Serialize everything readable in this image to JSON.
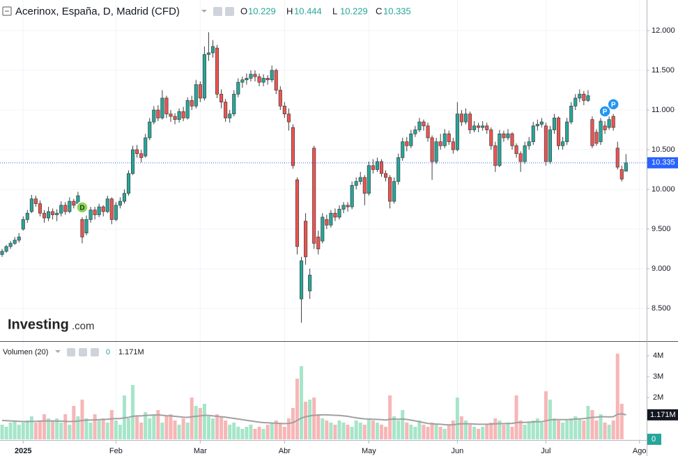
{
  "header": {
    "title": "Acerinox, España, D, Madrid (CFD)",
    "ohlc": [
      {
        "label": "O",
        "value": 10.229
      },
      {
        "label": "H",
        "value": 10.444
      },
      {
        "label": "L",
        "value": 10.229
      },
      {
        "label": "C",
        "value": 10.335
      }
    ]
  },
  "watermark": {
    "brand": "Investing",
    "suffix": ".com"
  },
  "chart_data": [
    {
      "type": "candlestick",
      "up_color": "#26a69a",
      "down_color": "#ef5350",
      "border_color": "#3d3d3d",
      "grid": true,
      "xlim": [
        -0.5,
        152.9
      ],
      "xticks": [
        {
          "value": 5,
          "label": "2025"
        },
        {
          "value": 27,
          "label": "Feb"
        },
        {
          "value": 47,
          "label": "Mar"
        },
        {
          "value": 67,
          "label": "Abr"
        },
        {
          "value": 87,
          "label": "May"
        },
        {
          "value": 108,
          "label": "Jun"
        },
        {
          "value": 129,
          "label": "Jul"
        },
        {
          "value": 151.2,
          "label": "Ago"
        }
      ],
      "ylim": [
        8.088,
        12.386
      ],
      "yticks": [
        {
          "value": 8.5,
          "label": "8.500"
        },
        {
          "value": 9,
          "label": "9.000"
        },
        {
          "value": 9.5,
          "label": "9.500"
        },
        {
          "value": 10,
          "label": "10.000"
        },
        {
          "value": 10.5,
          "label": "10.500"
        },
        {
          "value": 11,
          "label": "11.000"
        },
        {
          "value": 11.5,
          "label": "11.500"
        },
        {
          "value": 12,
          "label": "12.000"
        }
      ],
      "last_price": 10.335,
      "last_price_color": "#2962ff",
      "events": [
        {
          "label": "D",
          "x": 19,
          "color": "#8fd45f"
        },
        {
          "label": "P",
          "x": 143,
          "color": "#2196f3"
        },
        {
          "label": "P",
          "x": 145,
          "color": "#2196f3"
        }
      ],
      "candles": [
        [
          9.18,
          9.25,
          9.15,
          9.22
        ],
        [
          9.22,
          9.3,
          9.2,
          9.28
        ],
        [
          9.28,
          9.35,
          9.25,
          9.32
        ],
        [
          9.32,
          9.4,
          9.3,
          9.36
        ],
        [
          9.36,
          9.45,
          9.33,
          9.4
        ],
        [
          9.5,
          9.66,
          9.48,
          9.62
        ],
        [
          9.62,
          9.74,
          9.58,
          9.7
        ],
        [
          9.72,
          9.93,
          9.7,
          9.88
        ],
        [
          9.88,
          9.92,
          9.78,
          9.82
        ],
        [
          9.82,
          9.86,
          9.66,
          9.7
        ],
        [
          9.7,
          9.74,
          9.58,
          9.64
        ],
        [
          9.64,
          9.78,
          9.6,
          9.72
        ],
        [
          9.72,
          9.76,
          9.62,
          9.68
        ],
        [
          9.68,
          9.75,
          9.6,
          9.7
        ],
        [
          9.7,
          9.85,
          9.66,
          9.8
        ],
        [
          9.8,
          9.84,
          9.68,
          9.72
        ],
        [
          9.72,
          9.9,
          9.7,
          9.85
        ],
        [
          9.85,
          9.88,
          9.76,
          9.8
        ],
        [
          9.82,
          9.97,
          9.8,
          9.92
        ],
        [
          9.62,
          9.65,
          9.32,
          9.4
        ],
        [
          9.45,
          9.67,
          9.42,
          9.62
        ],
        [
          9.62,
          9.78,
          9.58,
          9.74
        ],
        [
          9.74,
          9.78,
          9.62,
          9.68
        ],
        [
          9.68,
          9.82,
          9.65,
          9.78
        ],
        [
          9.78,
          9.8,
          9.66,
          9.72
        ],
        [
          9.72,
          9.92,
          9.7,
          9.88
        ],
        [
          9.88,
          9.9,
          9.56,
          9.62
        ],
        [
          9.62,
          9.84,
          9.6,
          9.8
        ],
        [
          9.8,
          9.9,
          9.76,
          9.85
        ],
        [
          9.85,
          10.0,
          9.82,
          9.95
        ],
        [
          9.95,
          10.24,
          9.92,
          10.2
        ],
        [
          10.2,
          10.55,
          10.18,
          10.5
        ],
        [
          10.5,
          10.56,
          10.4,
          10.45
        ],
        [
          10.45,
          10.5,
          10.34,
          10.4
        ],
        [
          10.42,
          10.7,
          10.4,
          10.65
        ],
        [
          10.65,
          10.9,
          10.62,
          10.85
        ],
        [
          10.85,
          11.05,
          10.82,
          11.0
        ],
        [
          11.0,
          11.06,
          10.86,
          10.9
        ],
        [
          10.9,
          11.25,
          10.88,
          11.15
        ],
        [
          11.15,
          11.18,
          10.9,
          10.95
        ],
        [
          10.95,
          11.0,
          10.85,
          10.92
        ],
        [
          10.92,
          10.96,
          10.82,
          10.88
        ],
        [
          10.88,
          11.02,
          10.84,
          10.98
        ],
        [
          10.98,
          11.04,
          10.86,
          10.9
        ],
        [
          10.9,
          11.16,
          10.88,
          11.12
        ],
        [
          11.12,
          11.18,
          11.0,
          11.05
        ],
        [
          11.05,
          11.38,
          11.02,
          11.32
        ],
        [
          11.32,
          11.36,
          11.1,
          11.15
        ],
        [
          11.15,
          11.8,
          11.12,
          11.7
        ],
        [
          11.7,
          11.98,
          11.62,
          11.72
        ],
        [
          11.72,
          11.88,
          11.66,
          11.8
        ],
        [
          11.78,
          11.82,
          11.15,
          11.2
        ],
        [
          11.2,
          11.26,
          11.02,
          11.1
        ],
        [
          11.1,
          11.14,
          10.85,
          10.9
        ],
        [
          10.9,
          11.0,
          10.84,
          10.95
        ],
        [
          10.95,
          11.25,
          10.92,
          11.2
        ],
        [
          11.2,
          11.4,
          11.16,
          11.35
        ],
        [
          11.35,
          11.42,
          11.28,
          11.38
        ],
        [
          11.38,
          11.46,
          11.32,
          11.4
        ],
        [
          11.4,
          11.5,
          11.36,
          11.45
        ],
        [
          11.45,
          11.5,
          11.36,
          11.42
        ],
        [
          11.42,
          11.46,
          11.3,
          11.35
        ],
        [
          11.35,
          11.45,
          11.3,
          11.4
        ],
        [
          11.4,
          11.44,
          11.32,
          11.38
        ],
        [
          11.38,
          11.56,
          11.35,
          11.5
        ],
        [
          11.5,
          11.52,
          11.2,
          11.25
        ],
        [
          11.25,
          11.3,
          11.0,
          11.05
        ],
        [
          11.05,
          11.1,
          10.9,
          10.95
        ],
        [
          10.95,
          11.02,
          10.74,
          10.85
        ],
        [
          10.78,
          10.82,
          10.26,
          10.3
        ],
        [
          10.12,
          10.15,
          9.18,
          9.28
        ],
        [
          8.62,
          9.15,
          8.32,
          9.1
        ],
        [
          9.6,
          9.7,
          9.05,
          9.15
        ],
        [
          8.72,
          9.0,
          8.62,
          8.92
        ],
        [
          10.52,
          10.55,
          9.25,
          9.32
        ],
        [
          9.4,
          9.48,
          9.18,
          9.25
        ],
        [
          9.35,
          9.7,
          9.32,
          9.65
        ],
        [
          9.62,
          9.68,
          9.5,
          9.55
        ],
        [
          9.55,
          9.74,
          9.52,
          9.7
        ],
        [
          9.7,
          9.76,
          9.6,
          9.65
        ],
        [
          9.65,
          9.8,
          9.62,
          9.75
        ],
        [
          9.75,
          9.84,
          9.7,
          9.8
        ],
        [
          9.8,
          9.84,
          9.72,
          9.78
        ],
        [
          9.78,
          10.1,
          9.75,
          10.05
        ],
        [
          10.05,
          10.15,
          10.0,
          10.1
        ],
        [
          10.1,
          10.22,
          10.06,
          10.15
        ],
        [
          10.15,
          10.18,
          9.8,
          9.95
        ],
        [
          9.95,
          10.35,
          9.92,
          10.3
        ],
        [
          10.3,
          10.38,
          10.2,
          10.25
        ],
        [
          10.25,
          10.4,
          10.22,
          10.35
        ],
        [
          10.35,
          10.38,
          10.16,
          10.2
        ],
        [
          10.2,
          10.24,
          10.1,
          10.15
        ],
        [
          10.15,
          10.18,
          9.76,
          9.85
        ],
        [
          9.85,
          10.15,
          9.82,
          10.1
        ],
        [
          10.1,
          10.45,
          10.06,
          10.4
        ],
        [
          10.4,
          10.65,
          10.36,
          10.6
        ],
        [
          10.6,
          10.66,
          10.48,
          10.55
        ],
        [
          10.55,
          10.75,
          10.52,
          10.7
        ],
        [
          10.7,
          10.8,
          10.66,
          10.75
        ],
        [
          10.75,
          10.9,
          10.72,
          10.85
        ],
        [
          10.85,
          10.88,
          10.74,
          10.8
        ],
        [
          10.8,
          10.84,
          10.6,
          10.65
        ],
        [
          10.65,
          10.68,
          10.12,
          10.35
        ],
        [
          10.35,
          10.65,
          10.32,
          10.6
        ],
        [
          10.6,
          10.7,
          10.5,
          10.55
        ],
        [
          10.55,
          10.76,
          10.52,
          10.7
        ],
        [
          10.7,
          10.74,
          10.56,
          10.6
        ],
        [
          10.6,
          10.65,
          10.45,
          10.5
        ],
        [
          10.5,
          11.1,
          10.48,
          10.95
        ],
        [
          10.95,
          11.0,
          10.8,
          10.85
        ],
        [
          10.85,
          11.02,
          10.82,
          10.95
        ],
        [
          10.95,
          10.98,
          10.7,
          10.75
        ],
        [
          10.75,
          10.86,
          10.72,
          10.8
        ],
        [
          10.8,
          10.84,
          10.72,
          10.78
        ],
        [
          10.78,
          10.86,
          10.74,
          10.8
        ],
        [
          10.8,
          10.84,
          10.7,
          10.75
        ],
        [
          10.75,
          10.78,
          10.5,
          10.55
        ],
        [
          10.55,
          10.6,
          10.22,
          10.3
        ],
        [
          10.3,
          10.75,
          10.28,
          10.7
        ],
        [
          10.7,
          10.74,
          10.6,
          10.65
        ],
        [
          10.65,
          10.76,
          10.62,
          10.7
        ],
        [
          10.7,
          10.72,
          10.5,
          10.55
        ],
        [
          10.55,
          10.58,
          10.4,
          10.45
        ],
        [
          10.45,
          10.48,
          10.22,
          10.35
        ],
        [
          10.35,
          10.6,
          10.32,
          10.55
        ],
        [
          10.55,
          10.66,
          10.5,
          10.6
        ],
        [
          10.6,
          10.85,
          10.56,
          10.8
        ],
        [
          10.8,
          10.88,
          10.74,
          10.82
        ],
        [
          10.82,
          10.9,
          10.78,
          10.85
        ],
        [
          10.8,
          10.84,
          10.3,
          10.35
        ],
        [
          10.35,
          10.8,
          10.32,
          10.75
        ],
        [
          10.75,
          10.95,
          10.7,
          10.9
        ],
        [
          10.9,
          10.92,
          10.5,
          10.55
        ],
        [
          10.55,
          10.66,
          10.5,
          10.6
        ],
        [
          10.6,
          10.9,
          10.56,
          10.85
        ],
        [
          10.85,
          11.1,
          10.82,
          11.05
        ],
        [
          11.05,
          11.2,
          11.0,
          11.15
        ],
        [
          11.15,
          11.26,
          11.1,
          11.2
        ],
        [
          11.2,
          11.24,
          11.06,
          11.12
        ],
        [
          11.12,
          11.25,
          11.1,
          11.18
        ],
        [
          10.88,
          10.92,
          10.52,
          10.55
        ],
        [
          10.72,
          10.76,
          10.55,
          10.58
        ],
        [
          10.6,
          10.9,
          10.56,
          10.86
        ],
        [
          10.8,
          10.86,
          10.7,
          10.75
        ],
        [
          10.78,
          10.92,
          10.75,
          10.88
        ],
        [
          10.92,
          10.95,
          10.74,
          10.78
        ],
        [
          10.52,
          10.6,
          10.25,
          10.28
        ],
        [
          10.25,
          10.3,
          10.1,
          10.13
        ],
        [
          10.229,
          10.444,
          10.229,
          10.335
        ]
      ]
    },
    {
      "type": "volume",
      "name": "Volumen (20)",
      "up_color": "#a6e5c9",
      "down_color": "#f7b6b6",
      "current_color": "#26a69a",
      "ylim": [
        0,
        4.6
      ],
      "yticks": [
        {
          "value": 2,
          "label": "2M"
        },
        {
          "value": 3,
          "label": "3M"
        },
        {
          "value": 4,
          "label": "4M"
        }
      ],
      "values": [
        0.7,
        0.6,
        0.8,
        0.9,
        0.7,
        0.8,
        0.9,
        1.1,
        0.8,
        0.9,
        1.2,
        1.0,
        0.9,
        1.0,
        0.8,
        1.2,
        0.7,
        1.6,
        1.1,
        1.9,
        1.0,
        0.8,
        1.2,
        0.9,
        1.0,
        0.8,
        1.4,
        0.9,
        0.7,
        2.1,
        1.0,
        2.6,
        1.1,
        0.8,
        1.3,
        1.0,
        1.2,
        1.4,
        0.8,
        1.1,
        1.2,
        0.9,
        0.7,
        1.0,
        0.8,
        2.0,
        1.6,
        1.5,
        1.7,
        1.1,
        1.0,
        1.2,
        1.1,
        0.9,
        0.7,
        0.8,
        0.6,
        0.5,
        0.6,
        0.7,
        0.5,
        0.6,
        0.5,
        0.7,
        0.8,
        0.9,
        0.8,
        0.6,
        1.0,
        1.5,
        2.9,
        3.5,
        1.8,
        1.9,
        2.0,
        1.2,
        1.0,
        0.9,
        0.8,
        0.7,
        0.9,
        0.8,
        0.7,
        0.6,
        0.9,
        0.8,
        0.7,
        1.0,
        0.9,
        0.8,
        0.7,
        0.6,
        2.1,
        1.1,
        0.9,
        1.4,
        0.8,
        0.7,
        0.6,
        0.9,
        0.7,
        0.6,
        0.8,
        0.7,
        0.6,
        0.5,
        0.7,
        0.9,
        2.0,
        1.1,
        0.9,
        0.7,
        0.6,
        0.5,
        0.6,
        0.7,
        0.8,
        1.0,
        0.9,
        0.7,
        0.8,
        0.6,
        2.1,
        0.9,
        0.7,
        0.8,
        0.9,
        1.0,
        0.8,
        2.3,
        1.9,
        1.0,
        0.9,
        0.8,
        0.9,
        1.0,
        1.1,
        1.0,
        0.9,
        1.6,
        1.4,
        0.9,
        1.2,
        0.8,
        0.7,
        0.9,
        4.1,
        1.7,
        0
      ],
      "ma": {
        "color": "#a0a0a0",
        "last_label": "1.171M",
        "values": [
          0.9,
          0.89,
          0.88,
          0.87,
          0.86,
          0.85,
          0.85,
          0.86,
          0.86,
          0.87,
          0.88,
          0.88,
          0.88,
          0.87,
          0.87,
          0.86,
          0.85,
          0.86,
          0.87,
          0.9,
          0.92,
          0.92,
          0.93,
          0.94,
          0.95,
          0.96,
          0.98,
          0.99,
          0.99,
          1.03,
          1.05,
          1.1,
          1.12,
          1.12,
          1.14,
          1.15,
          1.16,
          1.17,
          1.15,
          1.13,
          1.12,
          1.1,
          1.08,
          1.06,
          1.05,
          1.08,
          1.1,
          1.12,
          1.15,
          1.14,
          1.12,
          1.1,
          1.08,
          1.06,
          1.03,
          1.0,
          0.97,
          0.94,
          0.91,
          0.88,
          0.85,
          0.82,
          0.8,
          0.79,
          0.78,
          0.77,
          0.76,
          0.75,
          0.76,
          0.8,
          0.9,
          1.02,
          1.08,
          1.12,
          1.15,
          1.16,
          1.17,
          1.17,
          1.16,
          1.15,
          1.14,
          1.12,
          1.1,
          1.06,
          1.03,
          1.0,
          0.98,
          0.97,
          0.96,
          0.95,
          0.94,
          0.92,
          0.96,
          0.97,
          0.96,
          0.97,
          0.95,
          0.92,
          0.88,
          0.84,
          0.8,
          0.76,
          0.74,
          0.73,
          0.72,
          0.7,
          0.69,
          0.69,
          0.73,
          0.74,
          0.74,
          0.74,
          0.73,
          0.72,
          0.72,
          0.72,
          0.73,
          0.74,
          0.75,
          0.75,
          0.76,
          0.76,
          0.8,
          0.81,
          0.81,
          0.82,
          0.83,
          0.84,
          0.84,
          0.89,
          0.93,
          0.94,
          0.94,
          0.94,
          0.94,
          0.95,
          0.97,
          0.98,
          0.99,
          1.02,
          1.05,
          1.06,
          1.08,
          1.08,
          1.07,
          1.08,
          1.2,
          1.22,
          1.171
        ]
      }
    }
  ]
}
